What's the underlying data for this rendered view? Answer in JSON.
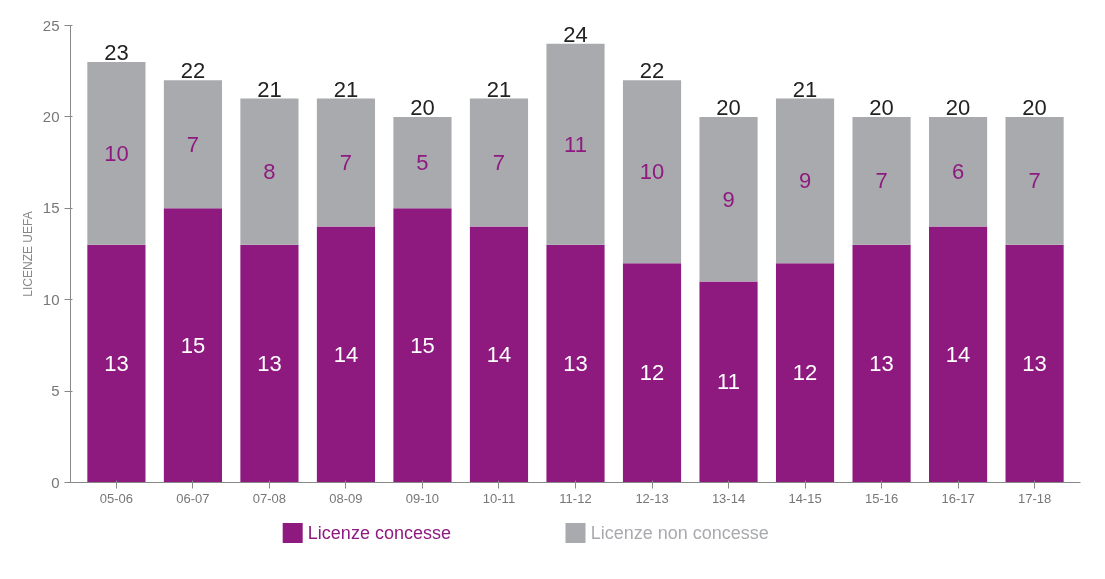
{
  "chart_data": {
    "type": "bar",
    "stacked": true,
    "ylabel": "LICENZE UEFA",
    "categories": [
      "05-06",
      "06-07",
      "07-08",
      "08-09",
      "09-10",
      "10-11",
      "11-12",
      "12-13",
      "13-14",
      "14-15",
      "15-16",
      "16-17",
      "17-18"
    ],
    "series": [
      {
        "name": "Licenze concesse",
        "color": "#8e1a80",
        "values": [
          13,
          15,
          13,
          14,
          15,
          14,
          13,
          12,
          11,
          12,
          13,
          14,
          13
        ]
      },
      {
        "name": "Licenze non concesse",
        "color": "#a9aaae",
        "values": [
          10,
          7,
          8,
          7,
          5,
          7,
          11,
          10,
          9,
          9,
          7,
          6,
          7
        ]
      }
    ],
    "totals": [
      "23",
      "22",
      "21",
      "21",
      "20",
      "21",
      "24",
      "22",
      "20",
      "21",
      "20",
      "20",
      "20"
    ],
    "data_labels": true,
    "ylim": [
      0,
      25
    ],
    "yticks": [
      0,
      5,
      10,
      15,
      20,
      25
    ],
    "grid": false,
    "legend": "bottom"
  }
}
